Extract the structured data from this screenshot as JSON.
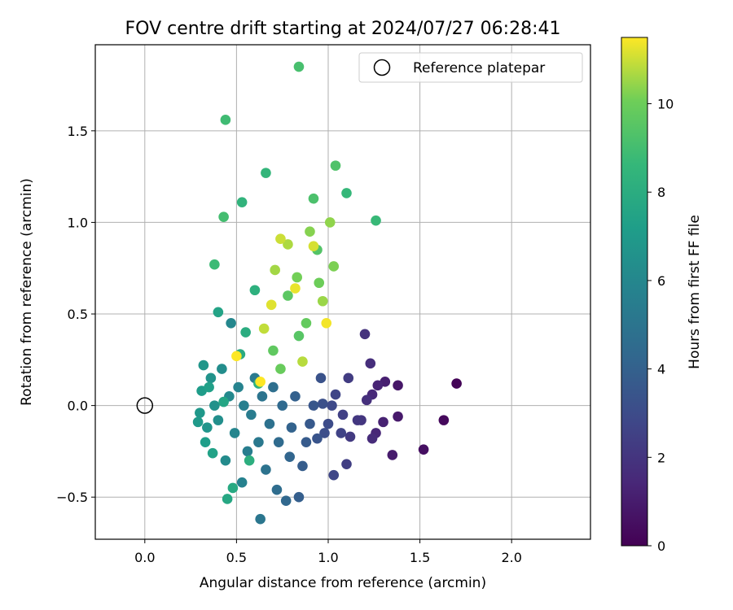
{
  "chart_data": {
    "type": "scatter",
    "title": "FOV centre drift starting at 2024/07/27 06:28:41",
    "xlabel": "Angular distance from reference (arcmin)",
    "ylabel": "Rotation from reference (arcmin)",
    "xlim": [
      -0.27,
      2.43
    ],
    "ylim": [
      -0.73,
      1.97
    ],
    "xticks": [
      0.0,
      0.5,
      1.0,
      1.5,
      2.0
    ],
    "xtick_labels": [
      "0.0",
      "0.5",
      "1.0",
      "1.5",
      "2.0"
    ],
    "yticks": [
      -0.5,
      0.0,
      0.5,
      1.0,
      1.5
    ],
    "ytick_labels": [
      "−0.5",
      "0.0",
      "0.5",
      "1.0",
      "1.5"
    ],
    "grid": true,
    "legend": {
      "position": "top-right",
      "entries": [
        "Reference platepar"
      ]
    },
    "colorbar": {
      "label": "Hours from first FF file",
      "range": [
        0,
        11.5
      ],
      "ticks": [
        0,
        2,
        4,
        6,
        8,
        10
      ],
      "tick_labels": [
        "0",
        "2",
        "4",
        "6",
        "8",
        "10"
      ],
      "colormap": "viridis"
    },
    "reference_point": {
      "name": "Reference platepar",
      "x": 0.0,
      "y": 0.0
    },
    "points": [
      [
        1.7,
        0.12,
        0.1
      ],
      [
        1.63,
        -0.08,
        0.3
      ],
      [
        1.52,
        -0.24,
        0.5
      ],
      [
        1.38,
        0.11,
        0.8
      ],
      [
        1.38,
        -0.06,
        0.9
      ],
      [
        1.35,
        -0.27,
        1.0
      ],
      [
        1.31,
        0.13,
        1.1
      ],
      [
        1.3,
        -0.09,
        1.2
      ],
      [
        1.27,
        0.11,
        1.3
      ],
      [
        1.26,
        -0.15,
        1.4
      ],
      [
        1.24,
        0.06,
        1.5
      ],
      [
        1.24,
        -0.18,
        1.6
      ],
      [
        1.23,
        0.23,
        1.7
      ],
      [
        1.21,
        0.03,
        1.8
      ],
      [
        1.2,
        0.39,
        1.9
      ],
      [
        1.18,
        -0.08,
        2.0
      ],
      [
        1.16,
        -0.08,
        2.1
      ],
      [
        1.12,
        -0.17,
        2.2
      ],
      [
        1.11,
        0.15,
        2.3
      ],
      [
        1.1,
        -0.32,
        2.4
      ],
      [
        1.08,
        -0.05,
        2.5
      ],
      [
        1.07,
        -0.15,
        2.6
      ],
      [
        1.04,
        0.06,
        2.7
      ],
      [
        1.03,
        -0.38,
        2.8
      ],
      [
        1.02,
        0.0,
        2.9
      ],
      [
        1.0,
        -0.1,
        3.0
      ],
      [
        0.98,
        -0.15,
        3.1
      ],
      [
        0.97,
        0.01,
        3.2
      ],
      [
        0.96,
        0.15,
        3.3
      ],
      [
        0.94,
        -0.18,
        3.4
      ],
      [
        0.92,
        0.0,
        3.5
      ],
      [
        0.9,
        -0.1,
        3.6
      ],
      [
        0.88,
        -0.2,
        3.7
      ],
      [
        0.86,
        -0.33,
        3.8
      ],
      [
        0.84,
        -0.5,
        3.9
      ],
      [
        0.82,
        0.05,
        4.0
      ],
      [
        0.8,
        -0.12,
        4.1
      ],
      [
        0.79,
        -0.28,
        4.2
      ],
      [
        0.77,
        -0.52,
        4.3
      ],
      [
        0.75,
        0.0,
        4.4
      ],
      [
        0.73,
        -0.2,
        4.5
      ],
      [
        0.72,
        -0.46,
        4.6
      ],
      [
        0.7,
        0.1,
        4.7
      ],
      [
        0.68,
        -0.1,
        4.8
      ],
      [
        0.66,
        -0.35,
        4.9
      ],
      [
        0.64,
        0.05,
        5.0
      ],
      [
        0.63,
        -0.62,
        5.1
      ],
      [
        0.62,
        -0.2,
        5.2
      ],
      [
        0.6,
        0.15,
        5.3
      ],
      [
        0.58,
        -0.05,
        5.4
      ],
      [
        0.56,
        -0.25,
        5.5
      ],
      [
        0.54,
        0.0,
        5.6
      ],
      [
        0.53,
        -0.42,
        5.7
      ],
      [
        0.51,
        0.1,
        5.8
      ],
      [
        0.49,
        -0.15,
        5.9
      ],
      [
        0.47,
        0.45,
        6.0
      ],
      [
        0.46,
        0.05,
        6.1
      ],
      [
        0.44,
        -0.3,
        6.2
      ],
      [
        0.42,
        0.2,
        6.3
      ],
      [
        0.4,
        -0.08,
        6.4
      ],
      [
        0.38,
        0.0,
        6.5
      ],
      [
        0.36,
        0.15,
        6.6
      ],
      [
        0.34,
        -0.12,
        6.7
      ],
      [
        0.32,
        0.22,
        6.8
      ],
      [
        0.3,
        -0.04,
        6.9
      ],
      [
        0.29,
        -0.09,
        7.0
      ],
      [
        0.31,
        0.08,
        7.1
      ],
      [
        0.33,
        -0.2,
        7.2
      ],
      [
        0.35,
        0.1,
        7.3
      ],
      [
        0.37,
        -0.26,
        7.4
      ],
      [
        0.4,
        0.51,
        7.5
      ],
      [
        0.43,
        0.02,
        7.6
      ],
      [
        0.45,
        -0.51,
        7.7
      ],
      [
        0.48,
        -0.45,
        7.8
      ],
      [
        0.52,
        0.28,
        7.9
      ],
      [
        0.55,
        0.4,
        8.0
      ],
      [
        0.57,
        -0.3,
        8.1
      ],
      [
        0.6,
        0.63,
        8.2
      ],
      [
        0.62,
        0.12,
        8.3
      ],
      [
        0.53,
        1.11,
        8.4
      ],
      [
        0.66,
        1.27,
        8.5
      ],
      [
        1.1,
        1.16,
        8.6
      ],
      [
        1.26,
        1.01,
        8.7
      ],
      [
        0.38,
        0.77,
        8.8
      ],
      [
        0.44,
        1.56,
        8.9
      ],
      [
        0.43,
        1.03,
        9.0
      ],
      [
        0.84,
        1.85,
        9.1
      ],
      [
        0.92,
        1.13,
        9.2
      ],
      [
        1.04,
        1.31,
        9.3
      ],
      [
        0.94,
        0.85,
        9.4
      ],
      [
        0.84,
        0.38,
        9.5
      ],
      [
        0.78,
        0.6,
        9.6
      ],
      [
        0.7,
        0.3,
        9.7
      ],
      [
        0.88,
        0.45,
        9.8
      ],
      [
        0.74,
        0.2,
        9.9
      ],
      [
        0.95,
        0.67,
        10.0
      ],
      [
        0.83,
        0.7,
        10.1
      ],
      [
        1.03,
        0.76,
        10.2
      ],
      [
        0.9,
        0.95,
        10.3
      ],
      [
        1.01,
        1.0,
        10.4
      ],
      [
        0.97,
        0.57,
        10.5
      ],
      [
        0.71,
        0.74,
        10.6
      ],
      [
        0.78,
        0.88,
        10.7
      ],
      [
        0.86,
        0.24,
        10.8
      ],
      [
        0.65,
        0.42,
        10.9
      ],
      [
        0.74,
        0.91,
        11.0
      ],
      [
        0.92,
        0.87,
        11.1
      ],
      [
        0.69,
        0.55,
        11.2
      ],
      [
        0.82,
        0.64,
        11.3
      ],
      [
        0.99,
        0.45,
        11.4
      ],
      [
        0.5,
        0.27,
        11.5
      ],
      [
        0.63,
        0.13,
        11.5
      ]
    ]
  }
}
